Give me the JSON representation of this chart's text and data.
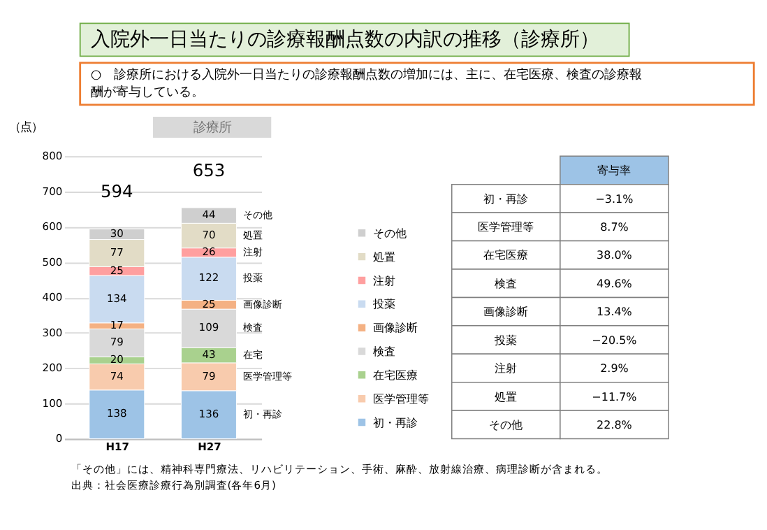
{
  "chart_data": [
    {
      "type": "bar",
      "title": "入院外一日当たりの診療報酬点数の内訳の推移（診療所）",
      "subtitle": "○　診療所における入院外一日当たりの診療報酬点数の増加には、主に、在宅医療、検査の診療報酬が寄与している。",
      "ylabel": "（点）",
      "categories": [
        "H17",
        "H27"
      ],
      "stacked": true,
      "data_labels": true,
      "totals": [
        "594",
        "653"
      ],
      "ylim": [
        0,
        800
      ],
      "yticks": [
        0,
        100,
        200,
        300,
        400,
        500,
        600,
        700,
        800
      ],
      "grid": "y",
      "legend": "right",
      "series": [
        {
          "name": "初・再診",
          "color": "#9dc3e6",
          "values": [
            138,
            136
          ]
        },
        {
          "name": "医学管理等",
          "color": "#f8cbad",
          "values": [
            74,
            79
          ]
        },
        {
          "name": "在宅医療",
          "color": "#a9d18e",
          "values": [
            20,
            43
          ]
        },
        {
          "name": "検査",
          "color": "#d9d9d9",
          "values": [
            79,
            109
          ]
        },
        {
          "name": "画像診断",
          "color": "#f4b183",
          "values": [
            17,
            25
          ]
        },
        {
          "name": "投薬",
          "color": "#c9dbf0",
          "values": [
            134,
            122
          ]
        },
        {
          "name": "注射",
          "color": "#ff9f9f",
          "values": [
            25,
            26
          ]
        },
        {
          "name": "処置",
          "color": "#e2dcc6",
          "values": [
            77,
            70
          ]
        },
        {
          "name": "その他",
          "color": "#cfcfcf",
          "values": [
            30,
            44
          ]
        }
      ],
      "annotations": [
        "診療所",
        "「その他」には、精神科専門療法、リハビリテーション、手術、麻酔、放射線治療、病理診断が含まれる。",
        "出典：社会医療診療行為別調査(各年6月)",
        "初・再診",
        "医学管理等",
        "在宅",
        "検査",
        "画像診断",
        "投薬",
        "注射",
        "処置",
        "その他"
      ]
    },
    {
      "type": "other",
      "title": "寄与率",
      "categories": [
        "初・再診",
        "医学管理等",
        "在宅医療",
        "検査",
        "画像診断",
        "投薬",
        "注射",
        "処置",
        "その他"
      ],
      "value_labels": [
        "−3.1%",
        "8.7%",
        "38.0%",
        "49.6%",
        "13.4%",
        "−20.5%",
        "2.9%",
        "−11.7%",
        "22.8%"
      ]
    }
  ]
}
